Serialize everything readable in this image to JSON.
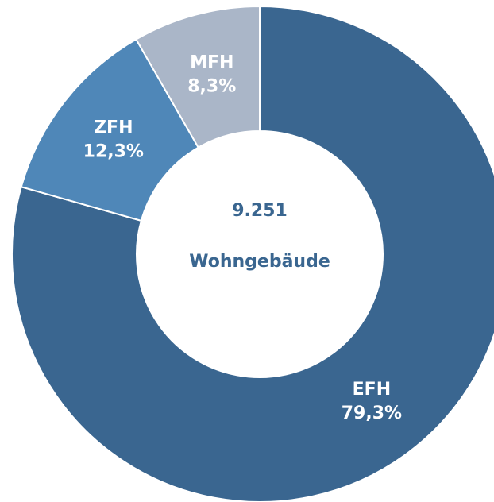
{
  "chart_data": {
    "type": "donut",
    "categories": [
      "EFH",
      "ZFH",
      "MFH"
    ],
    "values": [
      79.3,
      12.3,
      8.3
    ],
    "value_labels": [
      "79,3%",
      "12,3%",
      "8,3%"
    ],
    "colors": [
      "#3a6690",
      "#4f87b8",
      "#aab6c8"
    ],
    "annotations": [
      "9.251",
      "Wohngebäude"
    ]
  }
}
